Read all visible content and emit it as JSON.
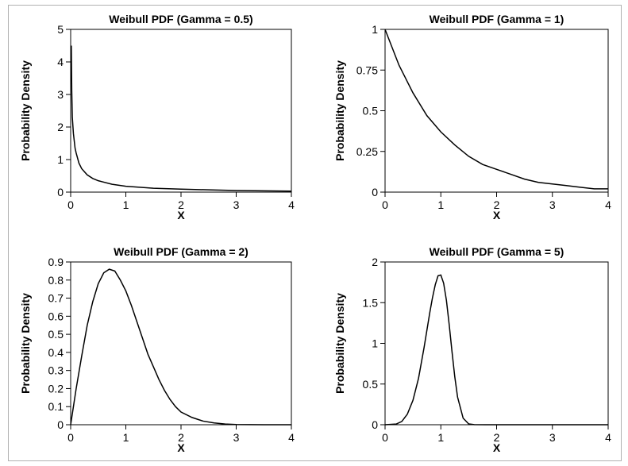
{
  "chart_data": [
    {
      "type": "line",
      "title": "Weibull PDF (Gamma = 0.5)",
      "xlabel": "X",
      "ylabel": "Probability Density",
      "xlim": [
        0,
        4
      ],
      "ylim": [
        0,
        5
      ],
      "xticks": [
        0,
        1,
        2,
        3,
        4
      ],
      "xtick_labels": [
        "0",
        "1",
        "2",
        "3",
        "4"
      ],
      "yticks": [
        0,
        1,
        2,
        3,
        4,
        5
      ],
      "ytick_labels": [
        "0",
        "1",
        "2",
        "3",
        "4",
        "5"
      ],
      "series": [
        {
          "x": [
            0.012,
            0.02,
            0.03,
            0.05,
            0.08,
            0.1,
            0.15,
            0.2,
            0.3,
            0.4,
            0.5,
            0.75,
            1,
            1.5,
            2,
            2.5,
            3,
            3.5,
            4
          ],
          "y": [
            4.5,
            3.1,
            2.3,
            1.8,
            1.35,
            1.2,
            0.89,
            0.72,
            0.53,
            0.42,
            0.35,
            0.24,
            0.18,
            0.12,
            0.09,
            0.07,
            0.05,
            0.04,
            0.03
          ]
        }
      ]
    },
    {
      "type": "line",
      "title": "Weibull PDF (Gamma = 1)",
      "xlabel": "X",
      "ylabel": "Probability Density",
      "xlim": [
        0,
        4
      ],
      "ylim": [
        0,
        1
      ],
      "xticks": [
        0,
        1,
        2,
        3,
        4
      ],
      "xtick_labels": [
        "0",
        "1",
        "2",
        "3",
        "4"
      ],
      "yticks": [
        0,
        0.25,
        0.5,
        0.75,
        1
      ],
      "ytick_labels": [
        "0",
        "0.25",
        "0.5",
        "0.75",
        "1"
      ],
      "series": [
        {
          "x": [
            0,
            0.25,
            0.5,
            0.75,
            1,
            1.25,
            1.5,
            1.75,
            2,
            2.25,
            2.5,
            2.75,
            3,
            3.25,
            3.5,
            3.75,
            4
          ],
          "y": [
            1,
            0.78,
            0.61,
            0.47,
            0.37,
            0.29,
            0.22,
            0.17,
            0.14,
            0.11,
            0.08,
            0.06,
            0.05,
            0.04,
            0.03,
            0.02,
            0.02
          ]
        }
      ]
    },
    {
      "type": "line",
      "title": "Weibull PDF (Gamma = 2)",
      "xlabel": "X",
      "ylabel": "Probability Density",
      "xlim": [
        0,
        4
      ],
      "ylim": [
        0,
        0.9
      ],
      "xticks": [
        0,
        1,
        2,
        3,
        4
      ],
      "xtick_labels": [
        "0",
        "1",
        "2",
        "3",
        "4"
      ],
      "yticks": [
        0,
        0.1,
        0.2,
        0.3,
        0.4,
        0.5,
        0.6,
        0.7,
        0.8,
        0.9
      ],
      "ytick_labels": [
        "0",
        "0.1",
        "0.2",
        "0.3",
        "0.4",
        "0.5",
        "0.6",
        "0.7",
        "0.8",
        "0.9"
      ],
      "series": [
        {
          "x": [
            0,
            0.1,
            0.2,
            0.3,
            0.4,
            0.5,
            0.6,
            0.7,
            0.8,
            0.9,
            1,
            1.1,
            1.2,
            1.3,
            1.4,
            1.5,
            1.6,
            1.7,
            1.8,
            1.9,
            2,
            2.2,
            2.4,
            2.6,
            2.8,
            3,
            3.5,
            4
          ],
          "y": [
            0,
            0.2,
            0.38,
            0.55,
            0.68,
            0.78,
            0.84,
            0.86,
            0.85,
            0.8,
            0.74,
            0.66,
            0.57,
            0.48,
            0.39,
            0.32,
            0.25,
            0.19,
            0.14,
            0.1,
            0.07,
            0.04,
            0.02,
            0.01,
            0.004,
            0.001,
            0,
            0
          ]
        }
      ]
    },
    {
      "type": "line",
      "title": "Weibull PDF (Gamma = 5)",
      "xlabel": "X",
      "ylabel": "Probability Density",
      "xlim": [
        0,
        4
      ],
      "ylim": [
        0,
        2
      ],
      "xticks": [
        0,
        1,
        2,
        3,
        4
      ],
      "xtick_labels": [
        "0",
        "1",
        "2",
        "3",
        "4"
      ],
      "yticks": [
        0,
        0.5,
        1,
        1.5,
        2
      ],
      "ytick_labels": [
        "0",
        "0.5",
        "1",
        "1.5",
        "2"
      ],
      "series": [
        {
          "x": [
            0,
            0.2,
            0.3,
            0.4,
            0.5,
            0.6,
            0.7,
            0.8,
            0.85,
            0.9,
            0.95,
            1,
            1.05,
            1.1,
            1.15,
            1.2,
            1.25,
            1.3,
            1.4,
            1.5,
            1.6,
            1.8,
            2,
            3,
            4
          ],
          "y": [
            0,
            0.008,
            0.04,
            0.13,
            0.3,
            0.57,
            0.95,
            1.37,
            1.56,
            1.72,
            1.83,
            1.84,
            1.74,
            1.53,
            1.23,
            0.9,
            0.59,
            0.34,
            0.08,
            0.01,
            0.001,
            0,
            0,
            0,
            0
          ]
        }
      ]
    }
  ]
}
